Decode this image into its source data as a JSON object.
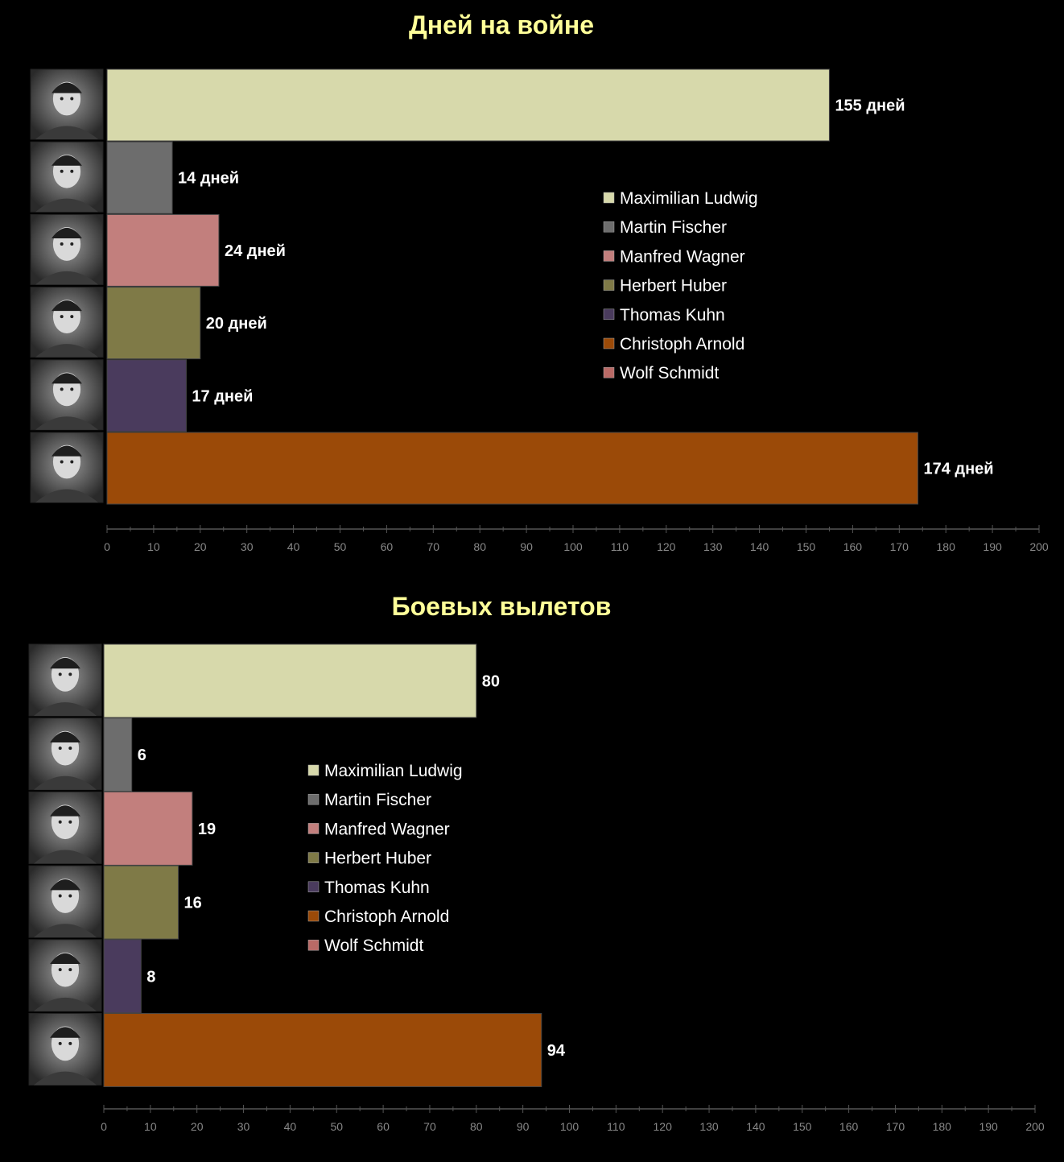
{
  "chart_data": [
    {
      "type": "bar",
      "orientation": "horizontal",
      "title": "Дней на войне",
      "categories": [
        "Maximilian Ludwig",
        "Martin Fischer",
        "Manfred Wagner",
        "Herbert Huber",
        "Thomas Kuhn",
        "Christoph Arnold"
      ],
      "values": [
        155,
        14,
        24,
        20,
        17,
        174
      ],
      "data_labels": [
        "155 дней",
        "14 дней",
        "24 дней",
        "20 дней",
        "17 дней",
        "174 дней"
      ],
      "xlim": [
        0,
        200
      ],
      "xticks": [
        0,
        10,
        20,
        30,
        40,
        50,
        60,
        70,
        80,
        90,
        100,
        110,
        120,
        130,
        140,
        150,
        160,
        170,
        180,
        190,
        200
      ],
      "grid": false,
      "legend_placement": "center-right",
      "legend": [
        "Maximilian Ludwig",
        "Martin Fischer",
        "Manfred Wagner",
        "Herbert Huber",
        "Thomas Kuhn",
        "Christoph Arnold",
        "Wolf Schmidt"
      ]
    },
    {
      "type": "bar",
      "orientation": "horizontal",
      "title": "Боевых вылетов",
      "categories": [
        "Maximilian Ludwig",
        "Martin Fischer",
        "Manfred Wagner",
        "Herbert Huber",
        "Thomas Kuhn",
        "Christoph Arnold"
      ],
      "values": [
        80,
        6,
        19,
        16,
        8,
        94
      ],
      "data_labels": [
        "80",
        "6",
        "19",
        "16",
        "8",
        "94"
      ],
      "xlim": [
        0,
        200
      ],
      "xticks": [
        0,
        10,
        20,
        30,
        40,
        50,
        60,
        70,
        80,
        90,
        100,
        110,
        120,
        130,
        140,
        150,
        160,
        170,
        180,
        190,
        200
      ],
      "grid": false,
      "legend_placement": "center",
      "legend": [
        "Maximilian Ludwig",
        "Martin Fischer",
        "Manfred Wagner",
        "Herbert Huber",
        "Thomas Kuhn",
        "Christoph Arnold",
        "Wolf Schmidt"
      ]
    }
  ],
  "colors": {
    "Maximilian Ludwig": "#d7d9ab",
    "Martin Fischer": "#6d6d6d",
    "Manfred Wagner": "#c27f7d",
    "Herbert Huber": "#7f7a47",
    "Thomas Kuhn": "#4a3b5d",
    "Christoph Arnold": "#9b4a08",
    "Wolf Schmidt": "#b96a66",
    "title": "#ffff99",
    "label": "#ffffff",
    "legend_text": "#ffffff",
    "axis": "#555555",
    "tick_text": "#888888"
  },
  "icons": [
    "portrait-photo-icon"
  ]
}
